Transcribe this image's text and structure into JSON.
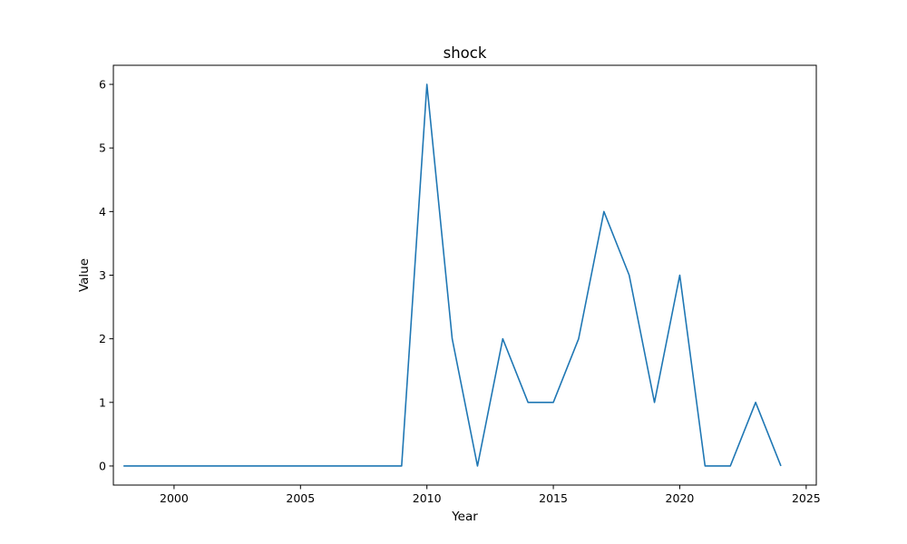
{
  "chart_data": {
    "type": "line",
    "title": "shock",
    "xlabel": "Year",
    "ylabel": "Value",
    "xlim": [
      1997.6,
      2025.4
    ],
    "ylim": [
      -0.3,
      6.3
    ],
    "xticks": [
      2000,
      2005,
      2010,
      2015,
      2020,
      2025
    ],
    "yticks": [
      0,
      1,
      2,
      3,
      4,
      5,
      6
    ],
    "grid": false,
    "line_color": "#1f77b4",
    "series": [
      {
        "x": [
          1998,
          1999,
          2000,
          2001,
          2002,
          2003,
          2004,
          2005,
          2006,
          2007,
          2008,
          2009,
          2010,
          2011,
          2012,
          2013,
          2014,
          2015,
          2016,
          2017,
          2018,
          2019,
          2020,
          2021,
          2022,
          2023,
          2024
        ],
        "values": [
          0,
          0,
          0,
          0,
          0,
          0,
          0,
          0,
          0,
          0,
          0,
          0,
          6,
          2,
          0,
          2,
          1,
          1,
          2,
          4,
          3,
          1,
          3,
          0,
          0,
          1,
          0
        ]
      }
    ]
  }
}
